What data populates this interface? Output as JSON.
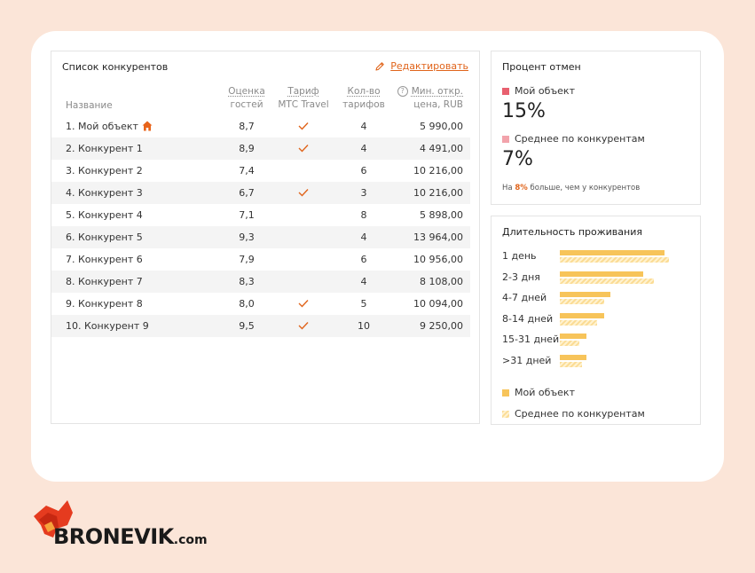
{
  "competitors": {
    "title": "Список конкурентов",
    "edit_label": "Редактировать",
    "headers": {
      "name": "Название",
      "rating_1": "Оценка",
      "rating_2": "гостей",
      "tariff_1": "Тариф",
      "tariff_2": "МТС Travel",
      "count_1": "Кол-во",
      "count_2": "тарифов",
      "price_1": "Мин. откр.",
      "price_2": "цена, RUB"
    },
    "rows": [
      {
        "name": "1. Мой объект",
        "rating": "8,7",
        "tariff": true,
        "count": "4",
        "price": "5 990,00",
        "own": true
      },
      {
        "name": "2. Конкурент 1",
        "rating": "8,9",
        "tariff": true,
        "count": "4",
        "price": "4 491,00"
      },
      {
        "name": "3. Конкурент 2",
        "rating": "7,4",
        "tariff": false,
        "count": "6",
        "price": "10 216,00"
      },
      {
        "name": "4. Конкурент 3",
        "rating": "6,7",
        "tariff": true,
        "count": "3",
        "price": "10 216,00"
      },
      {
        "name": "5. Конкурент 4",
        "rating": "7,1",
        "tariff": false,
        "count": "8",
        "price": "5 898,00"
      },
      {
        "name": "6. Конкурент 5",
        "rating": "9,3",
        "tariff": false,
        "count": "4",
        "price": "13 964,00"
      },
      {
        "name": "7. Конкурент 6",
        "rating": "7,9",
        "tariff": false,
        "count": "6",
        "price": "10 956,00"
      },
      {
        "name": "8. Конкурент 7",
        "rating": "8,3",
        "tariff": false,
        "count": "4",
        "price": "8 108,00"
      },
      {
        "name": "9. Конкурент 8",
        "rating": "8,0",
        "tariff": true,
        "count": "5",
        "price": "10 094,00"
      },
      {
        "name": "10. Конкурент 9",
        "rating": "9,5",
        "tariff": true,
        "count": "10",
        "price": "9 250,00"
      }
    ]
  },
  "cancellation": {
    "title": "Процент отмен",
    "own_label": "Мой объект",
    "own_value": "15%",
    "avg_label": "Среднее по конкурентам",
    "avg_value": "7%",
    "note_prefix": "На ",
    "note_diff": "8%",
    "note_suffix": " больше, чем у конкурентов",
    "own_color": "#e8606f",
    "avg_color": "#f2a3ab"
  },
  "duration": {
    "title": "Длительность проживания",
    "items": [
      {
        "label": "1 день",
        "own": 1.0,
        "avg": 1.04
      },
      {
        "label": "2-3 дня",
        "own": 0.8,
        "avg": 0.9
      },
      {
        "label": "4-7 дней",
        "own": 0.48,
        "avg": 0.42
      },
      {
        "label": "8-14 дней",
        "own": 0.42,
        "avg": 0.36
      },
      {
        "label": "15-31 дней",
        "own": 0.25,
        "avg": 0.19
      },
      {
        "label": ">31 дней",
        "own": 0.25,
        "avg": 0.21
      }
    ],
    "legend_own": "Мой объект",
    "legend_avg": "Среднее по конкурентам",
    "own_color": "#f7c45a",
    "avg_color": "#fbdc95"
  },
  "brand": {
    "logo_text": "BRONEVIK",
    "logo_domain": ".com"
  }
}
